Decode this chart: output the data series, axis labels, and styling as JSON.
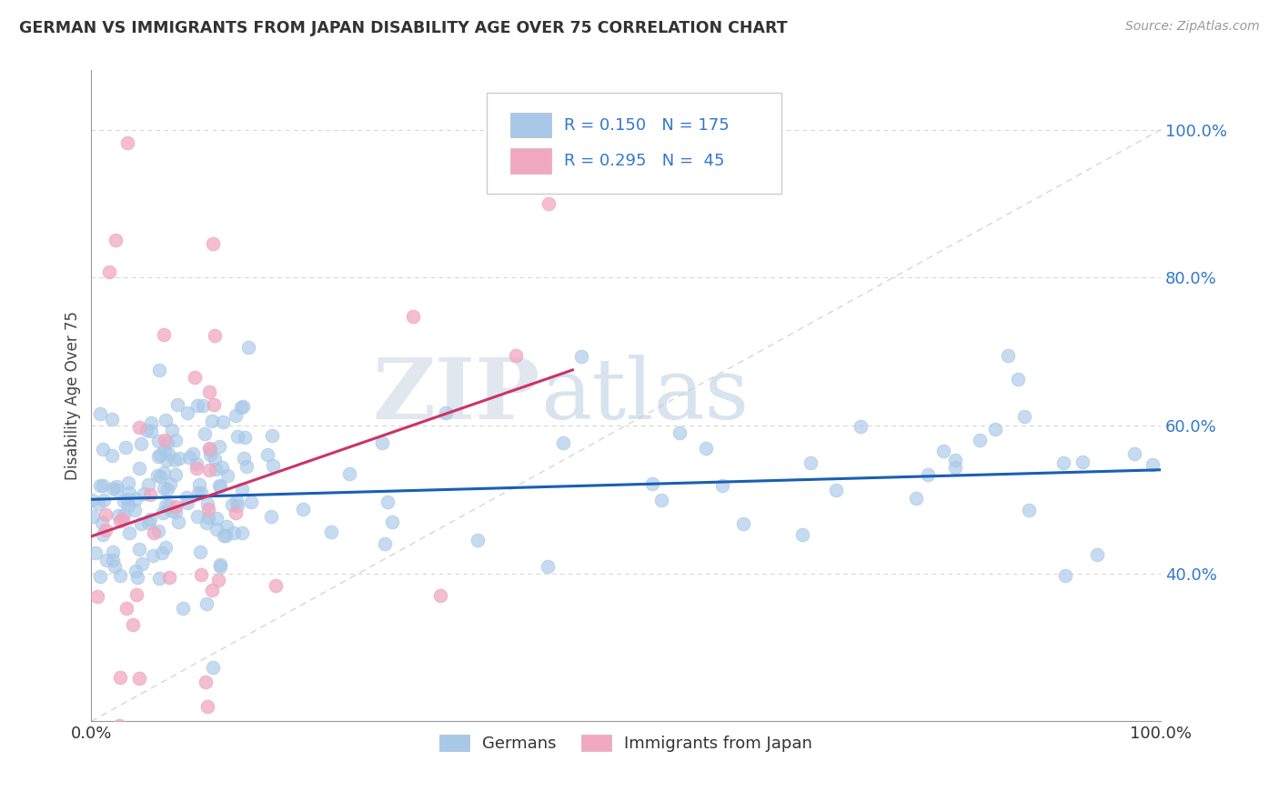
{
  "title": "GERMAN VS IMMIGRANTS FROM JAPAN DISABILITY AGE OVER 75 CORRELATION CHART",
  "source": "Source: ZipAtlas.com",
  "xlabel": "",
  "ylabel": "Disability Age Over 75",
  "legend_label_1": "Germans",
  "legend_label_2": "Immigrants from Japan",
  "R1": 0.15,
  "N1": 175,
  "R2": 0.295,
  "N2": 45,
  "color1": "#a8c8e8",
  "color2": "#f0a8c0",
  "trendline1_color": "#1a5fb4",
  "trendline2_color": "#cc3366",
  "bg_color": "#ffffff",
  "watermark_zip": "ZIP",
  "watermark_atlas": "atlas",
  "seed": 7,
  "xlim": [
    0.0,
    1.0
  ],
  "ylim": [
    0.2,
    1.08
  ],
  "ytick_positions": [
    0.4,
    0.6,
    0.8,
    1.0
  ],
  "ytick_labels": [
    "40.0%",
    "60.0%",
    "80.0%",
    "100.0%"
  ],
  "xtick_positions": [
    0.0,
    1.0
  ],
  "xtick_labels": [
    "0.0%",
    "100.0%"
  ],
  "grid_color": "#cccccc",
  "refline_color": "#cccccc"
}
